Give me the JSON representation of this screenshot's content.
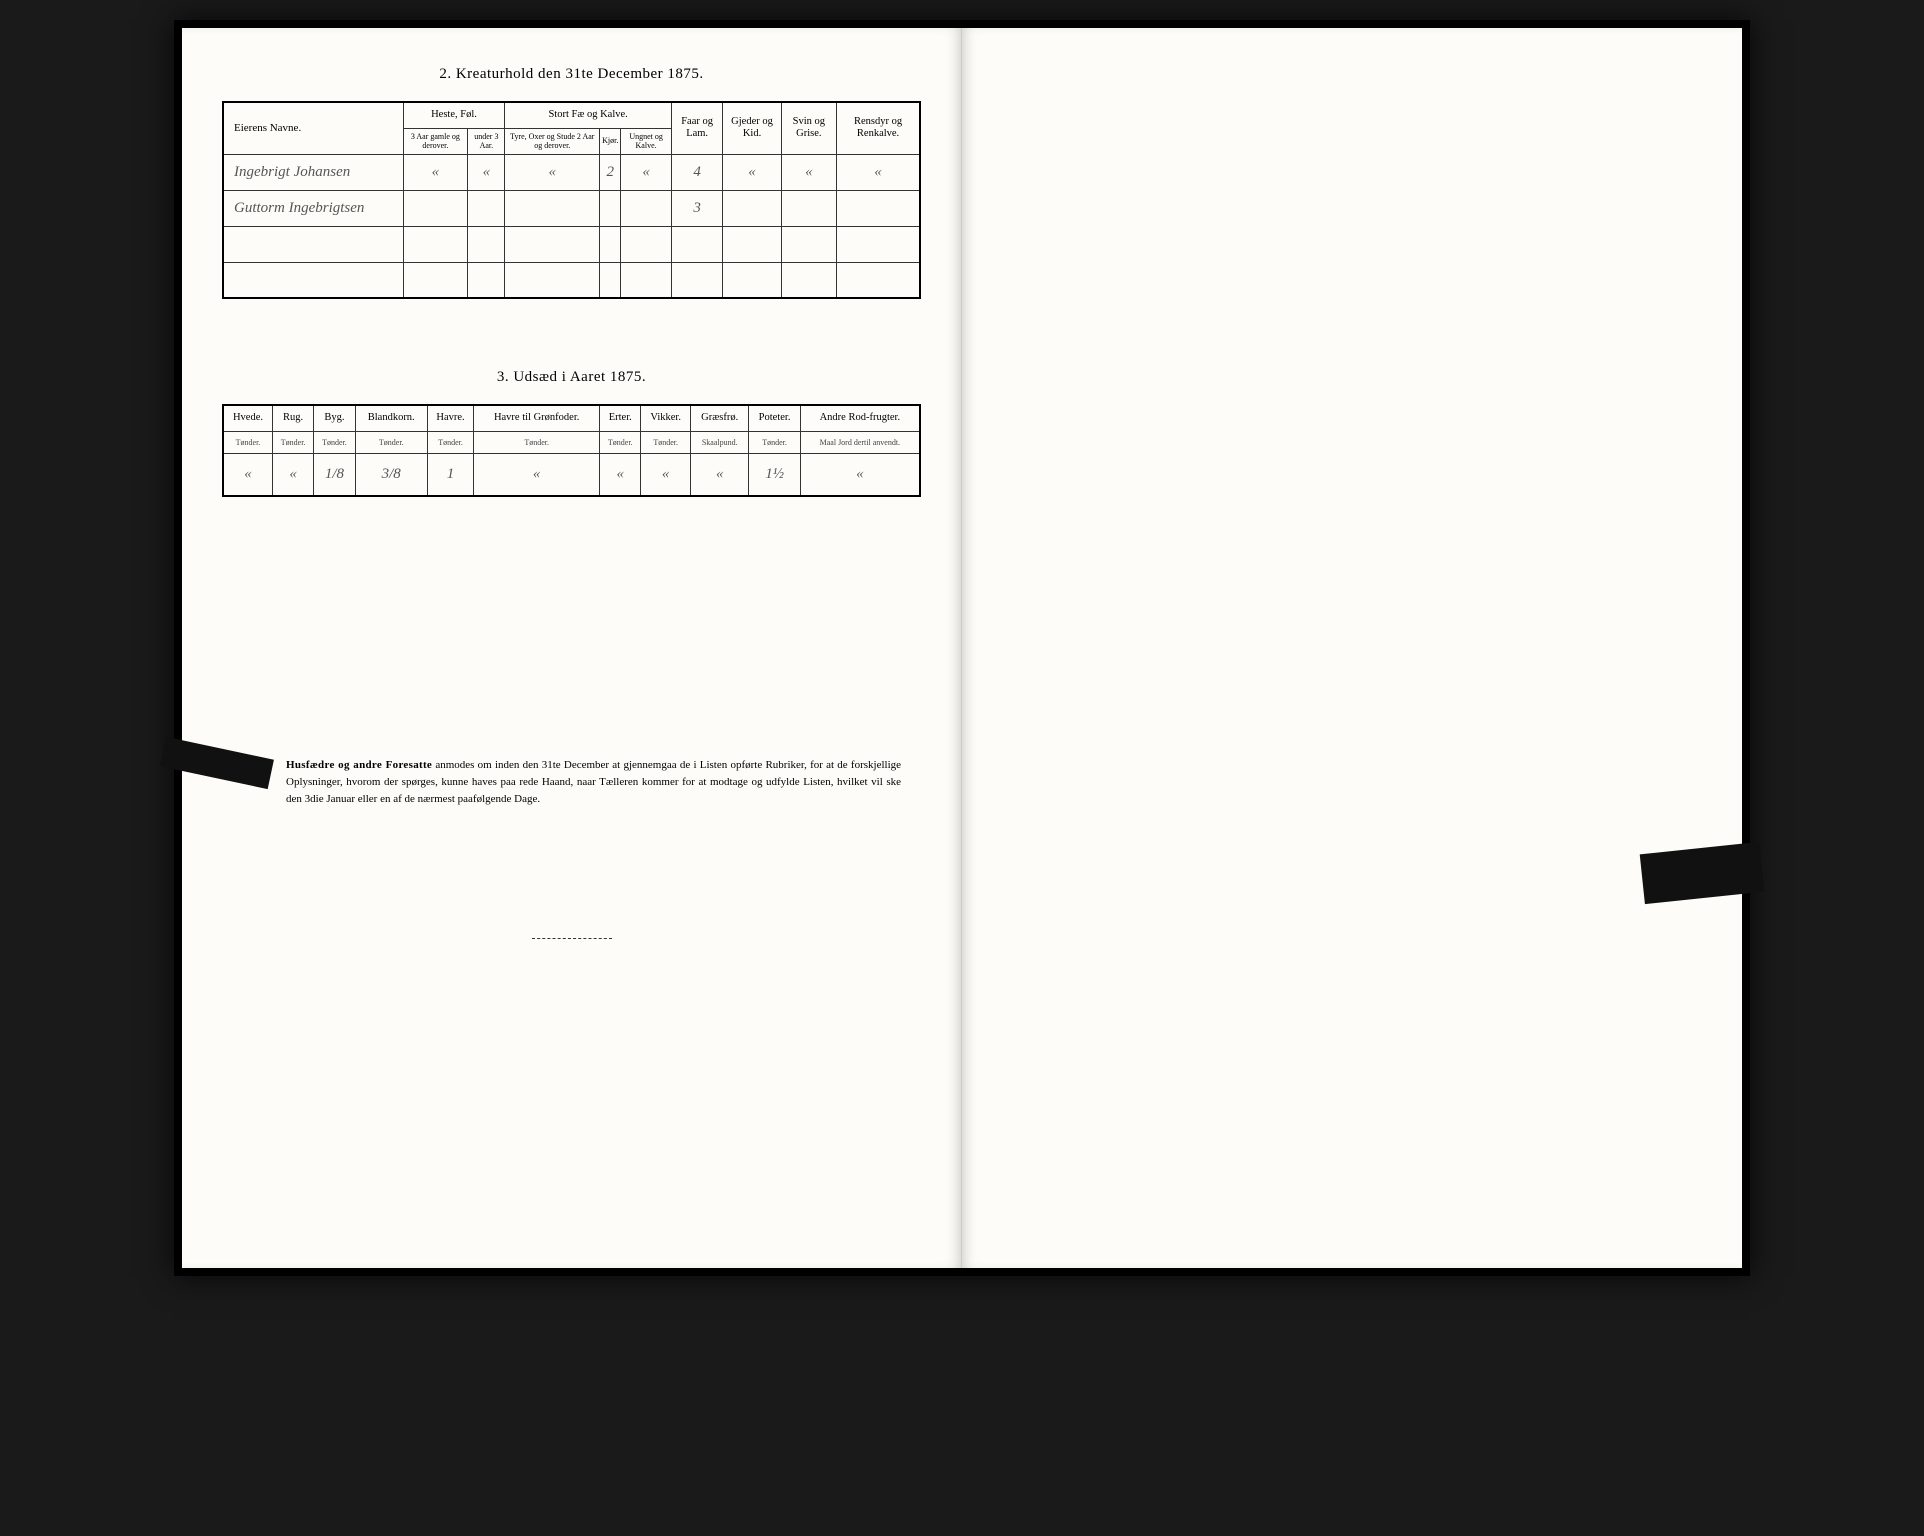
{
  "section1": {
    "title": "2.  Kreaturhold den 31te December 1875.",
    "headers": {
      "name": "Eierens Navne.",
      "group_horses": "Heste, Føl.",
      "horses_old": "3 Aar gamle og derover.",
      "horses_young": "under 3 Aar.",
      "group_cattle": "Stort Fæ og Kalve.",
      "cattle_bulls": "Tyre, Oxer og Stude 2 Aar og derover.",
      "cattle_cows": "Kjør.",
      "cattle_young": "Ungnet og Kalve.",
      "sheep": "Faar og Lam.",
      "goats": "Gjeder og Kid.",
      "pigs": "Svin og Grise.",
      "reindeer": "Rensdyr og Renkalve."
    },
    "rows": [
      {
        "name": "Ingebrigt Johansen",
        "horses_old": "«",
        "horses_young": "«",
        "cattle_bulls": "«",
        "cattle_cows": "2",
        "cattle_young": "«",
        "sheep": "4",
        "goats": "«",
        "pigs": "«",
        "reindeer": "«"
      },
      {
        "name": "Guttorm Ingebrigtsen",
        "horses_old": "",
        "horses_young": "",
        "cattle_bulls": "",
        "cattle_cows": "",
        "cattle_young": "",
        "sheep": "3",
        "goats": "",
        "pigs": "",
        "reindeer": ""
      },
      {
        "name": "",
        "horses_old": "",
        "horses_young": "",
        "cattle_bulls": "",
        "cattle_cows": "",
        "cattle_young": "",
        "sheep": "",
        "goats": "",
        "pigs": "",
        "reindeer": ""
      },
      {
        "name": "",
        "horses_old": "",
        "horses_young": "",
        "cattle_bulls": "",
        "cattle_cows": "",
        "cattle_young": "",
        "sheep": "",
        "goats": "",
        "pigs": "",
        "reindeer": ""
      }
    ]
  },
  "section2": {
    "title": "3.  Udsæd i Aaret 1875.",
    "columns": [
      {
        "label": "Hvede.",
        "unit": "Tønder."
      },
      {
        "label": "Rug.",
        "unit": "Tønder."
      },
      {
        "label": "Byg.",
        "unit": "Tønder."
      },
      {
        "label": "Blandkorn.",
        "unit": "Tønder."
      },
      {
        "label": "Havre.",
        "unit": "Tønder."
      },
      {
        "label": "Havre til Grønfoder.",
        "unit": "Tønder."
      },
      {
        "label": "Erter.",
        "unit": "Tønder."
      },
      {
        "label": "Vikker.",
        "unit": "Tønder."
      },
      {
        "label": "Græsfrø.",
        "unit": "Skaalpund."
      },
      {
        "label": "Poteter.",
        "unit": "Tønder."
      },
      {
        "label": "Andre Rod-frugter.",
        "unit": "Maal Jord dertil anvendt."
      }
    ],
    "row": [
      "«",
      "«",
      "1/8",
      "3/8",
      "1",
      "«",
      "«",
      "«",
      "«",
      "1½",
      "«"
    ]
  },
  "footer": {
    "lead": "Husfædre og andre Foresatte",
    "body": " anmodes om inden den 31te December at gjennemgaa de i Listen opførte Rubriker, for at de forskjellige Oplysninger, hvorom der spørges, kunne haves paa rede Haand, naar Tælleren kommer for at modtage og udfylde Listen, hvilket vil ske den 3die Januar eller en af de nærmest paafølgende Dage."
  },
  "colors": {
    "page": "#fdfcf8",
    "ink": "#222222",
    "handwriting": "#555555",
    "border": "#333333"
  }
}
